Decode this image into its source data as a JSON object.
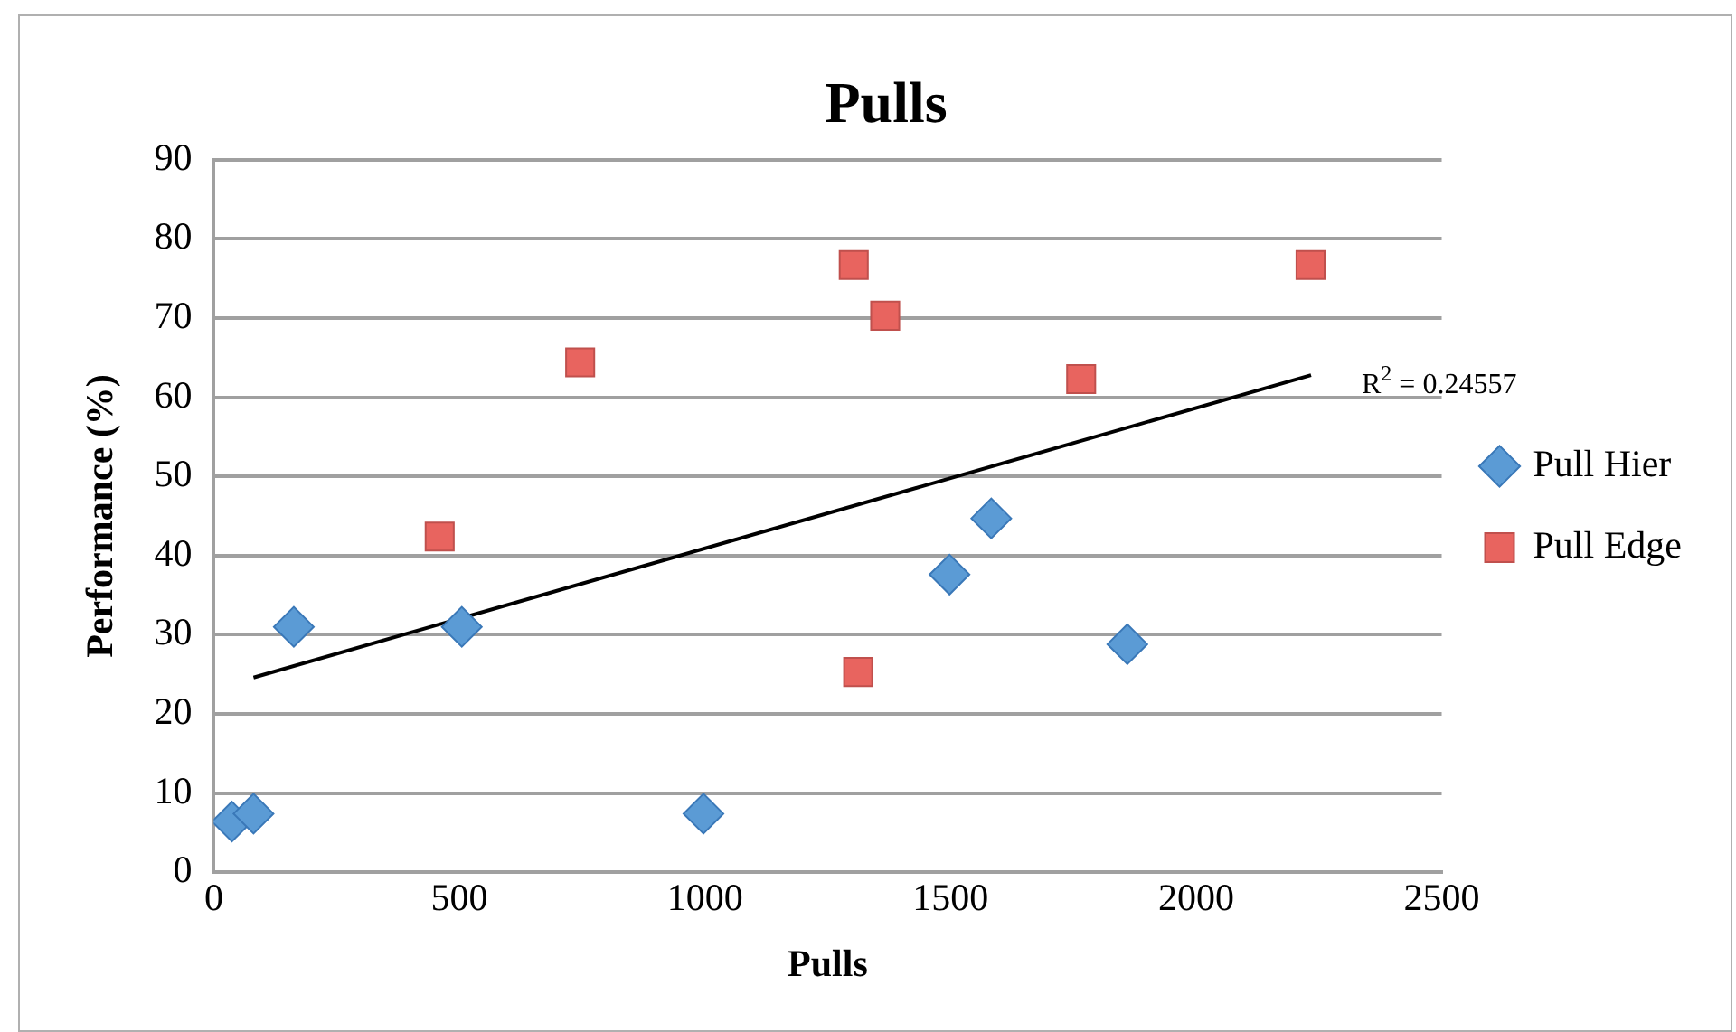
{
  "chart_data": {
    "type": "scatter",
    "title": "Pulls",
    "xlabel": "Pulls",
    "ylabel": "Performance (%)",
    "xlim": [
      0,
      2500
    ],
    "xticks": [
      0,
      500,
      1000,
      1500,
      2000,
      2500
    ],
    "ylim": [
      0,
      90
    ],
    "yticks": [
      0,
      10,
      20,
      30,
      40,
      50,
      60,
      70,
      80,
      90
    ],
    "grid": "y",
    "legend": "right",
    "series": [
      {
        "name": "Pull Hier",
        "color": "#5b9bd5",
        "marker": "diamond",
        "x": [
          37,
          81,
          163,
          505,
          997,
          1498,
          1583,
          1860
        ],
        "values": [
          6.4,
          7.4,
          31,
          31,
          7.4,
          37.6,
          44.7,
          28.8
        ]
      },
      {
        "name": "Pull Edge",
        "color": "#e8645f",
        "marker": "square",
        "x": [
          460,
          746,
          1303,
          1367,
          1312,
          1766,
          2233
        ],
        "values": [
          42.4,
          64.4,
          76.7,
          70.3,
          25.3,
          62.3,
          76.7
        ]
      },
      {
        "type": "line",
        "color": "#000000",
        "marker": "none",
        "x": [
          81,
          2234
        ],
        "values": [
          24.6,
          62.8
        ]
      }
    ],
    "annotations": [
      {
        "text": "R$^{2}$ = 0.24557",
        "x": 2234,
        "y": 62.8
      }
    ]
  }
}
